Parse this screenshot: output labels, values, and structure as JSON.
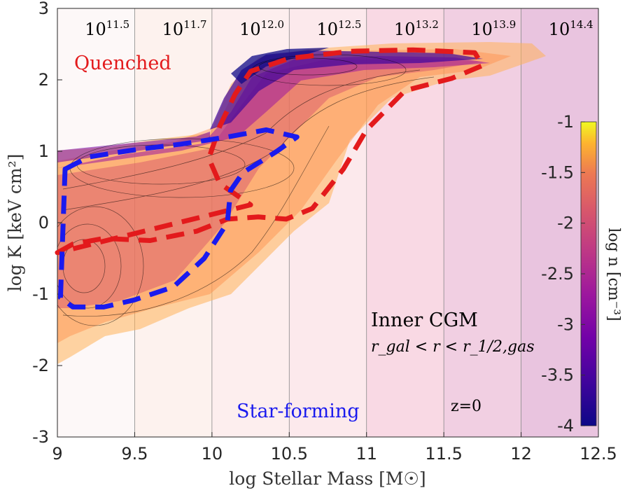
{
  "chart_data": {
    "type": "heatmap",
    "xlabel": "log Stellar Mass [M☉]",
    "ylabel": "log K [keV cm²]",
    "xlim": [
      9,
      12.5
    ],
    "ylim": [
      -3,
      3
    ],
    "xticks": [
      "9",
      "9.5",
      "10",
      "10.5",
      "11",
      "11.5",
      "12",
      "12.5"
    ],
    "yticks": [
      "3",
      "2",
      "1",
      "0",
      "-1",
      "-2",
      "-3"
    ],
    "halo_mass_bins": {
      "edges": [
        9.0,
        9.5,
        10.0,
        10.5,
        11.0,
        11.5,
        12.0,
        12.5
      ],
      "labels": [
        {
          "base": "10",
          "exp": "11.5"
        },
        {
          "base": "10",
          "exp": "11.7"
        },
        {
          "base": "10",
          "exp": "12.0"
        },
        {
          "base": "10",
          "exp": "12.5"
        },
        {
          "base": "10",
          "exp": "13.2"
        },
        {
          "base": "10",
          "exp": "13.9"
        },
        {
          "base": "10",
          "exp": "14.4"
        }
      ]
    },
    "colorbar": {
      "label": "log n [cm⁻³]",
      "range": [
        -4,
        -1
      ],
      "ticks": [
        "-1",
        "-1.5",
        "-2",
        "-2.5",
        "-3",
        "-3.5",
        "-4"
      ]
    },
    "regions": [
      {
        "name": "Quenched",
        "color": "#e31a1c",
        "path": [
          [
            9.0,
            -0.42
          ],
          [
            9.1,
            -0.3
          ],
          [
            9.3,
            -0.22
          ],
          [
            9.6,
            -0.25
          ],
          [
            9.9,
            -0.12
          ],
          [
            10.1,
            0.05
          ],
          [
            10.3,
            0.08
          ],
          [
            10.48,
            0.05
          ],
          [
            10.65,
            0.2
          ],
          [
            10.85,
            0.75
          ],
          [
            11.0,
            1.3
          ],
          [
            11.25,
            1.85
          ],
          [
            11.55,
            2.02
          ],
          [
            11.75,
            2.2
          ],
          [
            11.7,
            2.38
          ],
          [
            11.3,
            2.42
          ],
          [
            10.9,
            2.4
          ],
          [
            10.5,
            2.3
          ],
          [
            10.25,
            2.12
          ],
          [
            10.15,
            1.8
          ],
          [
            10.05,
            1.35
          ],
          [
            9.98,
            0.9
          ],
          [
            10.05,
            0.55
          ],
          [
            10.25,
            0.25
          ]
        ]
      },
      {
        "name": "Star-forming",
        "color": "#1a1aee",
        "path": [
          [
            9.05,
            0.75
          ],
          [
            9.2,
            0.92
          ],
          [
            9.5,
            1.02
          ],
          [
            9.8,
            1.1
          ],
          [
            10.1,
            1.2
          ],
          [
            10.35,
            1.3
          ],
          [
            10.55,
            1.2
          ],
          [
            10.42,
            1.0
          ],
          [
            10.2,
            0.7
          ],
          [
            10.12,
            0.45
          ],
          [
            10.1,
            0.0
          ],
          [
            9.95,
            -0.5
          ],
          [
            9.75,
            -0.9
          ],
          [
            9.5,
            -1.08
          ],
          [
            9.3,
            -1.18
          ],
          [
            9.1,
            -1.18
          ],
          [
            9.02,
            -1.05
          ]
        ]
      }
    ],
    "annotations": {
      "quenched": "Quenched",
      "star_forming": "Star-forming",
      "inner_title": "Inner CGM",
      "inner_subtitle": "r_gal < r < r_1/2,gas",
      "redshift": "z=0"
    }
  }
}
